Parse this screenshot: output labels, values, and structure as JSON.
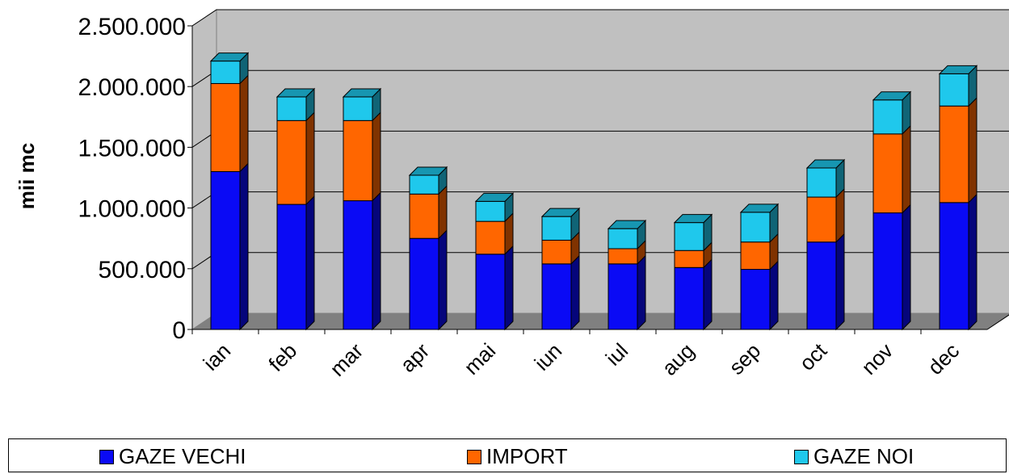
{
  "chart_data": {
    "type": "bar",
    "stacked": true,
    "style": "3d",
    "categories": [
      "ian",
      "feb",
      "mar",
      "apr",
      "mai",
      "iun",
      "iul",
      "aug",
      "sep",
      "oct",
      "nov",
      "dec"
    ],
    "series": [
      {
        "name": "GAZE VECHI",
        "color": "#0a0af5",
        "values": [
          1300000,
          1030000,
          1060000,
          750000,
          620000,
          540000,
          540000,
          510000,
          495000,
          720000,
          960000,
          1045000
        ]
      },
      {
        "name": "IMPORT",
        "color": "#ff6600",
        "values": [
          725000,
          690000,
          660000,
          365000,
          270000,
          195000,
          125000,
          140000,
          225000,
          370000,
          650000,
          795000
        ]
      },
      {
        "name": "GAZE NOI",
        "color": "#1fc8ec",
        "values": [
          185000,
          195000,
          195000,
          155000,
          165000,
          195000,
          165000,
          230000,
          245000,
          240000,
          280000,
          265000
        ]
      }
    ],
    "ylabel": "mii mc",
    "xlabel": "",
    "title": "",
    "ylim": [
      0,
      2500000
    ],
    "yticks": [
      "0",
      "500.000",
      "1.000.000",
      "1.500.000",
      "2.000.000",
      "2.500.000"
    ],
    "grid": true,
    "legend_position": "bottom"
  }
}
